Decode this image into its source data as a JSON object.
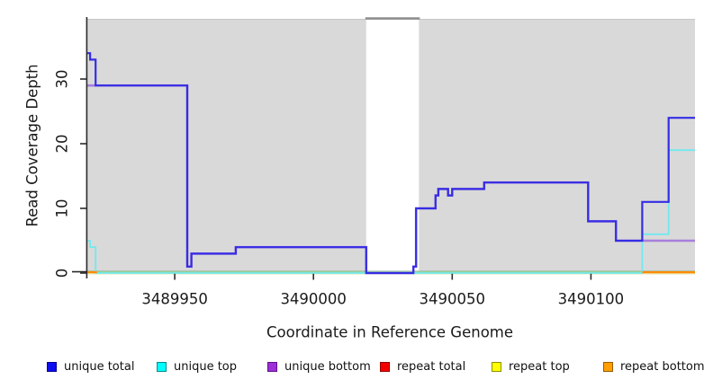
{
  "chart_data": {
    "type": "line",
    "subtype": "step-coverage-plot",
    "title": "",
    "xlabel": "Coordinate in Reference Genome",
    "ylabel": "Read Coverage Depth",
    "x_tick_labels": [
      "3489950",
      "3490000",
      "3490050",
      "3490100"
    ],
    "x_tick_values": [
      3489950,
      3490000,
      3490050,
      3490100
    ],
    "y_tick_labels": [
      "0",
      "10",
      "20",
      "30"
    ],
    "y_tick_values": [
      0,
      10,
      20,
      30
    ],
    "xlim": [
      3489918.5,
      3490137.5
    ],
    "ylim": [
      0,
      39.4
    ],
    "grid": false,
    "legend_position": "bottom",
    "plot_background": "#d9d9d9",
    "background_gap_x": [
      3490019,
      3490038
    ],
    "gap_top_bar_color": "#8e8e8e",
    "baseline_overlap_color": "#96d29b",
    "axis_color": "#2b2b2b",
    "series": [
      {
        "name": "unique total",
        "color": "#342de4",
        "steps": [
          [
            3489918.5,
            34
          ],
          [
            3489919.5,
            33
          ],
          [
            3489921.5,
            29
          ],
          [
            3489954.5,
            1
          ],
          [
            3489956,
            3
          ],
          [
            3489972,
            4
          ],
          [
            3490019,
            0
          ],
          [
            3490036,
            1
          ],
          [
            3490037,
            10
          ],
          [
            3490044,
            12
          ],
          [
            3490045,
            13
          ],
          [
            3490048.5,
            12
          ],
          [
            3490050,
            13
          ],
          [
            3490061.5,
            14
          ],
          [
            3490099,
            8
          ],
          [
            3490109,
            5
          ],
          [
            3490118.5,
            11
          ],
          [
            3490128,
            24
          ]
        ],
        "end": 3490137.5
      },
      {
        "name": "unique top",
        "color": "#72e9ed",
        "steps": [
          [
            3489918.5,
            5
          ],
          [
            3489919.5,
            4
          ],
          [
            3489921.5,
            0
          ],
          [
            3490118.5,
            6
          ],
          [
            3490128,
            19
          ]
        ],
        "end": 3490137.5
      },
      {
        "name": "unique bottom",
        "color": "#a77fdc",
        "steps": [
          [
            3489918.5,
            29
          ],
          [
            3489954.5,
            1
          ],
          [
            3489956,
            3
          ],
          [
            3489972,
            4
          ],
          [
            3490019,
            0
          ],
          [
            3490036,
            1
          ],
          [
            3490037,
            10
          ],
          [
            3490044,
            12
          ],
          [
            3490045,
            13
          ],
          [
            3490048.5,
            12
          ],
          [
            3490050,
            13
          ],
          [
            3490061.5,
            14
          ],
          [
            3490099,
            8
          ],
          [
            3490109,
            5
          ]
        ],
        "end": 3490137.5
      },
      {
        "name": "repeat total",
        "color": "#d02020",
        "steps": [
          [
            3489918.5,
            0
          ]
        ],
        "end": 3490137.5
      },
      {
        "name": "repeat top",
        "color": "#e9e4ad",
        "steps": [
          [
            3489918.5,
            0
          ]
        ],
        "end": 3490137.5
      },
      {
        "name": "repeat bottom",
        "color": "#ff8c00",
        "steps": [
          [
            3489918.5,
            0
          ]
        ],
        "end": 3490137.5,
        "visible_segments": [
          [
            3489918.5,
            3489922
          ],
          [
            3490118.5,
            3490137.5
          ]
        ]
      }
    ],
    "legend": [
      {
        "label": "unique total",
        "fill": "#0d0df2",
        "border": "#000090"
      },
      {
        "label": "unique top",
        "fill": "#00ffff",
        "border": "#008b8b"
      },
      {
        "label": "unique bottom",
        "fill": "#9c2fd6",
        "border": "#5e0f8e"
      },
      {
        "label": "repeat total",
        "fill": "#f40000",
        "border": "#900000"
      },
      {
        "label": "repeat top",
        "fill": "#ffff00",
        "border": "#8f8f00"
      },
      {
        "label": "repeat bottom",
        "fill": "#ffa000",
        "border": "#985c00"
      }
    ]
  }
}
